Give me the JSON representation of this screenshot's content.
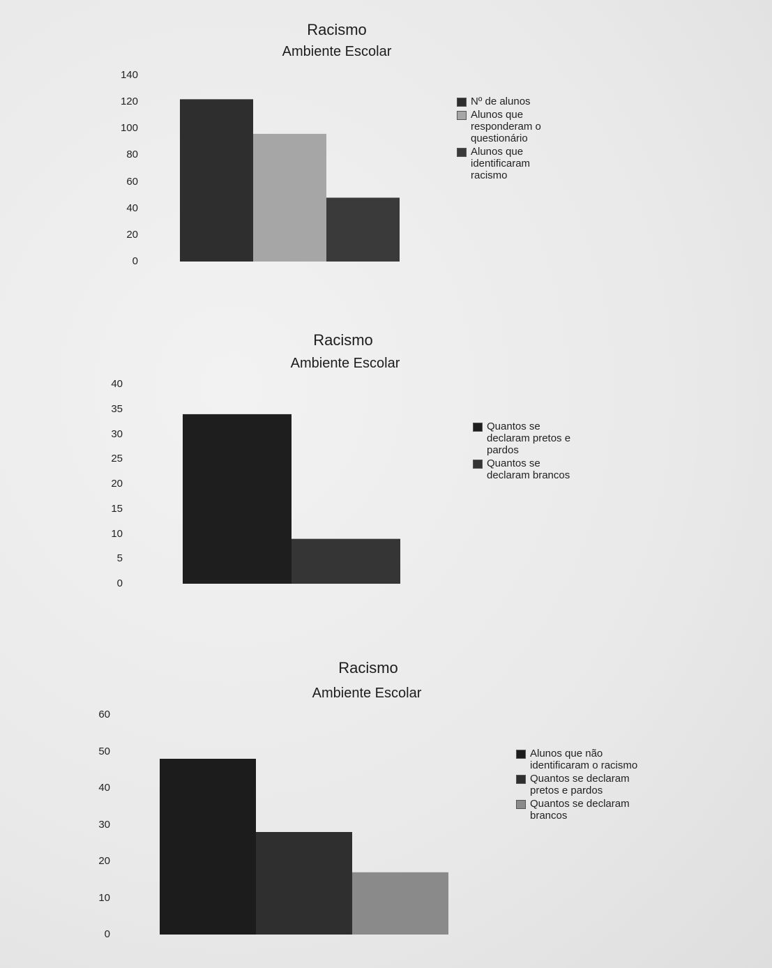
{
  "chart_data": [
    {
      "type": "bar",
      "title": "Racismo",
      "subtitle": "Ambiente Escolar",
      "ylim": [
        0,
        140
      ],
      "yticks": [
        0,
        20,
        40,
        60,
        80,
        100,
        120,
        140
      ],
      "grid": false,
      "legend_position": "right",
      "series": [
        {
          "name": "Nº de alunos",
          "value": 122,
          "color": "#2e2e2e"
        },
        {
          "name": "Alunos que responderam o questionário",
          "value": 96,
          "color": "#a6a6a6"
        },
        {
          "name": "Alunos que identificaram racismo",
          "value": 48,
          "color": "#3a3a3a"
        }
      ]
    },
    {
      "type": "bar",
      "title": "Racismo",
      "subtitle": "Ambiente Escolar",
      "ylim": [
        0,
        40
      ],
      "yticks": [
        0,
        5,
        10,
        15,
        20,
        25,
        30,
        35,
        40
      ],
      "grid": false,
      "legend_position": "right",
      "series": [
        {
          "name": "Quantos se declaram pretos e pardos",
          "value": 34,
          "color": "#1e1e1e"
        },
        {
          "name": "Quantos se declaram brancos",
          "value": 9,
          "color": "#353535"
        }
      ]
    },
    {
      "type": "bar",
      "title": "Racismo",
      "subtitle": "Ambiente Escolar",
      "ylim": [
        0,
        60
      ],
      "yticks": [
        0,
        10,
        20,
        30,
        40,
        50,
        60
      ],
      "grid": false,
      "legend_position": "right",
      "series": [
        {
          "name": "Alunos que não identificaram o racismo",
          "value": 48,
          "color": "#1c1c1c"
        },
        {
          "name": "Quantos se declaram pretos e pardos",
          "value": 28,
          "color": "#2f2f2f"
        },
        {
          "name": "Quantos se declaram brancos",
          "value": 17,
          "color": "#8a8a8a"
        }
      ]
    }
  ]
}
